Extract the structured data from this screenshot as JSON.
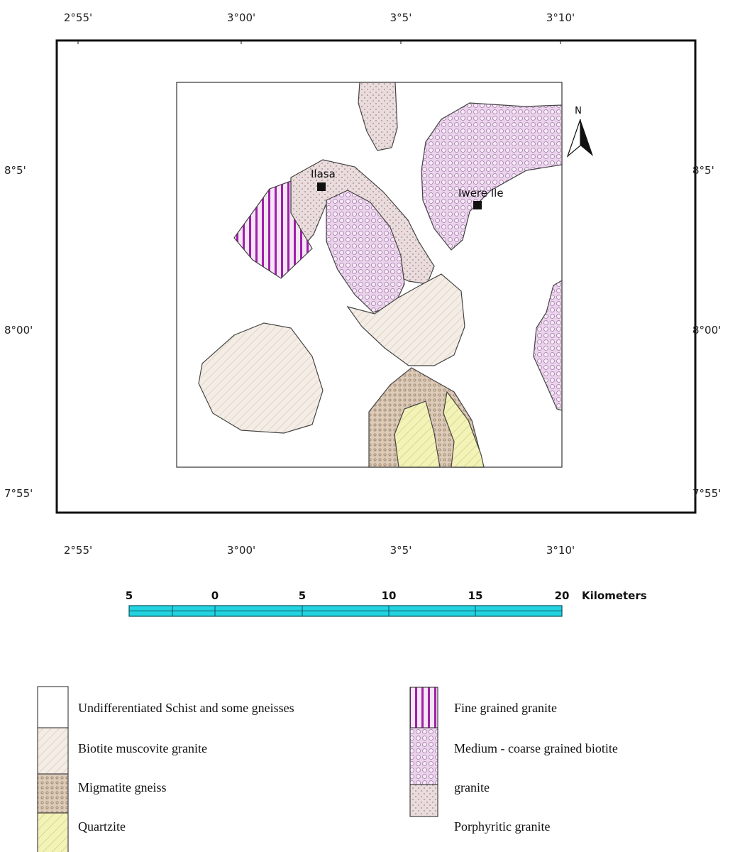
{
  "map": {
    "top_labels": [
      "2°55'",
      "3°00'",
      "3°5'",
      "3°10'"
    ],
    "bottom_labels": [
      "2°55'",
      "3°00'",
      "3°5'",
      "3°10'"
    ],
    "left_labels": [
      "8°5'",
      "8°00'",
      "7°55'"
    ],
    "right_labels": [
      "8°5'",
      "8°00'",
      "7°55'"
    ],
    "north": "N",
    "places": [
      "Ilasa",
      "Iwere Ile"
    ],
    "scale": {
      "labels": [
        "5",
        "0",
        "5",
        "10",
        "15",
        "20"
      ],
      "unit": "Kilometers"
    }
  },
  "legend": {
    "left": [
      "Undifferentiated Schist and some gneisses",
      "Biotite muscovite granite",
      "Migmatite gneiss",
      "Quartzite"
    ],
    "right": [
      "Fine grained granite",
      "Medium - coarse grained biotite",
      "granite",
      "Porphyritic granite"
    ]
  }
}
